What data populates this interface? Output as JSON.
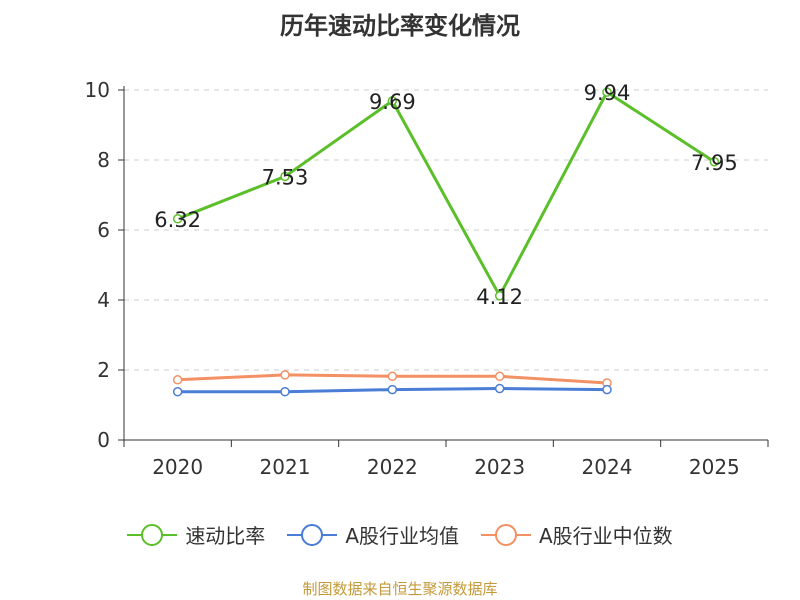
{
  "chart_data": {
    "type": "line",
    "title": "历年速动比率变化情况",
    "categories": [
      "2020",
      "2021",
      "2022",
      "2023",
      "2024",
      "2025"
    ],
    "ylim": [
      0,
      10
    ],
    "yticks": [
      0,
      2,
      4,
      6,
      8,
      10
    ],
    "grid": true,
    "legend_position": "bottom",
    "series": [
      {
        "name": "速动比率",
        "color": "#5bbf2a",
        "values": [
          6.32,
          7.53,
          9.69,
          4.12,
          9.94,
          7.95
        ],
        "labels": [
          "6.32",
          "7.53",
          "9.69",
          "4.12",
          "9.94",
          "7.95"
        ]
      },
      {
        "name": "A股行业均值",
        "color": "#4a7dd6",
        "values": [
          1.38,
          1.38,
          1.44,
          1.47,
          1.44,
          null
        ]
      },
      {
        "name": "A股行业中位数",
        "color": "#f39064",
        "values": [
          1.72,
          1.86,
          1.82,
          1.82,
          1.63,
          null
        ]
      }
    ],
    "source": "制图数据来自恒生聚源数据库"
  }
}
